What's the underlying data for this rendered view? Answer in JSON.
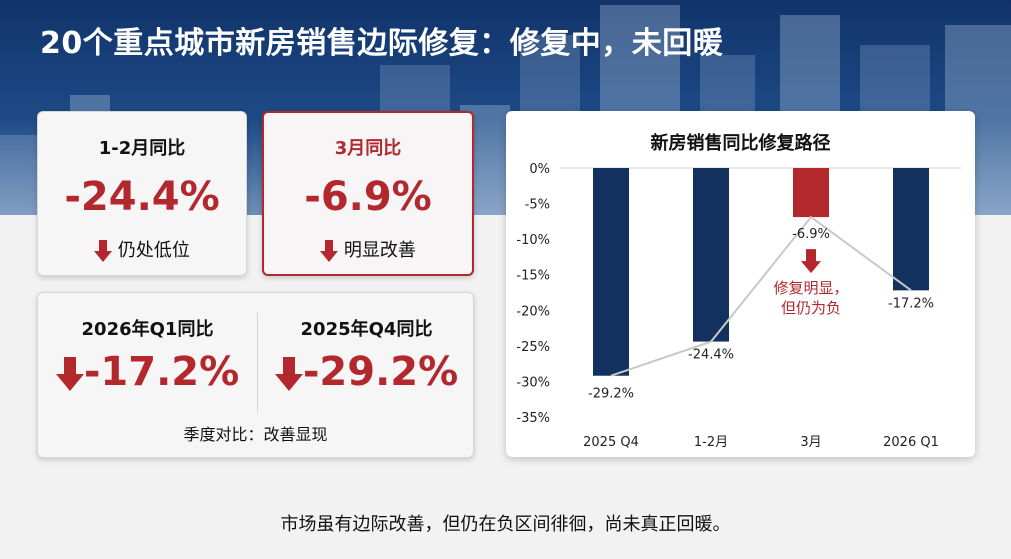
{
  "title": "20个重点城市新房销售边际修复：修复中，未回暖",
  "cards": {
    "jan_feb": {
      "label": "1-2月同比",
      "value": "-24.4%",
      "note": "仍处低位"
    },
    "march": {
      "label": "3月同比",
      "value": "-6.9%",
      "note": "明显改善"
    }
  },
  "quarter_card": {
    "q1": {
      "label": "2026年Q1同比",
      "value": "-17.2%"
    },
    "q4": {
      "label": "2025年Q4同比",
      "value": "-29.2%"
    },
    "caption": "季度对比：改善显现"
  },
  "chart_data": {
    "type": "bar",
    "title": "新房销售同比修复路径",
    "categories": [
      "2025 Q4",
      "1-2月",
      "3月",
      "2026 Q1"
    ],
    "series": [
      {
        "values": [
          -29.2,
          -24.4,
          -6.9,
          -17.2
        ]
      }
    ],
    "data_labels": [
      "-29.2%",
      "-24.4%",
      "-6.9%",
      "-17.2%"
    ],
    "ylim": [
      -35,
      0
    ],
    "yticks": [
      "0%",
      "-5%",
      "-10%",
      "-15%",
      "-20%",
      "-25%",
      "-30%",
      "-35%"
    ],
    "ytick_values": [
      0,
      -5,
      -10,
      -15,
      -20,
      -25,
      -30,
      -35
    ],
    "highlight_category": "3月",
    "annotation": "修复明显，\n但仍为负",
    "grid": false,
    "colors": {
      "bar": "#13315f",
      "highlight": "#b3282d",
      "line": "#c8c8c8"
    }
  },
  "footer": "市场虽有边际改善，但仍在负区间徘徊，尚未真正回暖。",
  "colors": {
    "accent": "#b3282d",
    "navy": "#13315f"
  }
}
